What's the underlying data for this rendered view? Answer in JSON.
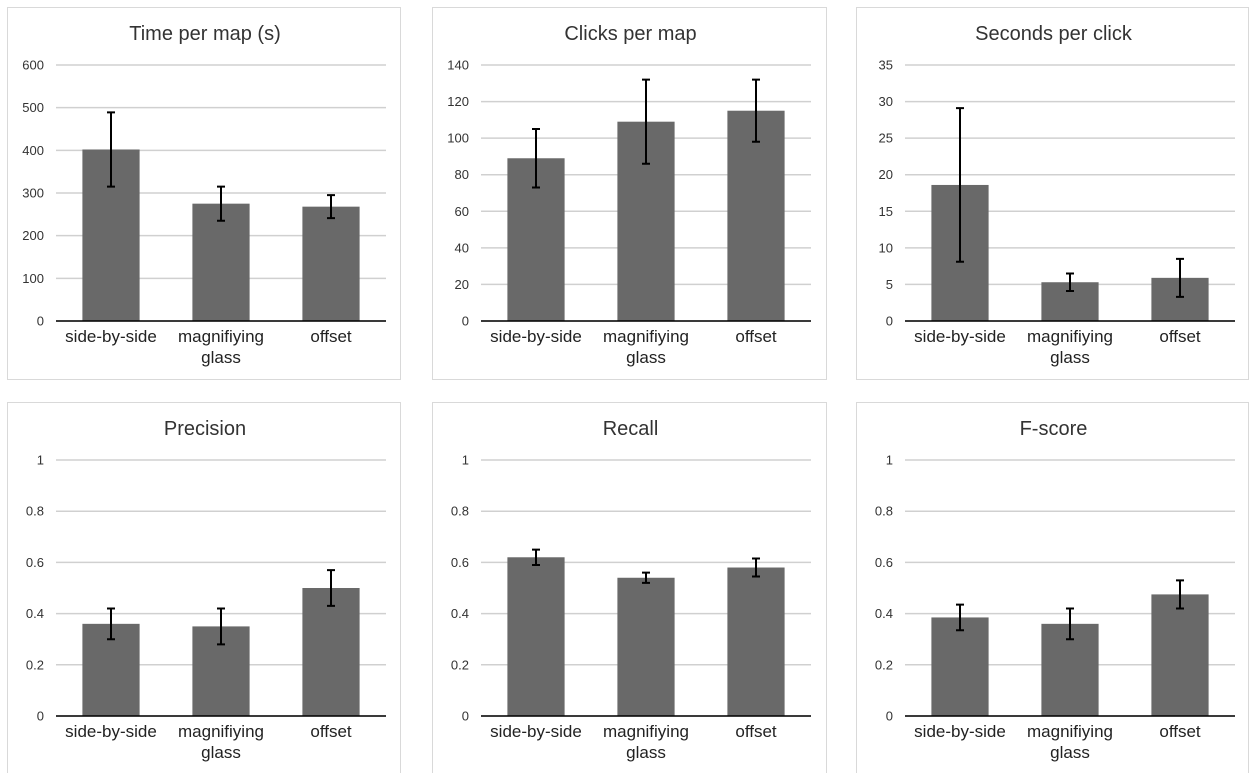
{
  "chart_data": [
    {
      "type": "bar",
      "title": "Time per map (s)",
      "categories": [
        "side-by-side",
        "magnifiying glass",
        "offset"
      ],
      "values": [
        402,
        275,
        268
      ],
      "errors": [
        87,
        40,
        27
      ],
      "color": "#696969",
      "ylim": [
        0,
        600
      ],
      "yticks": [
        0,
        100,
        200,
        300,
        400,
        500,
        600
      ],
      "grid": true
    },
    {
      "type": "bar",
      "title": "Clicks per map",
      "categories": [
        "side-by-side",
        "magnifiying glass",
        "offset"
      ],
      "values": [
        89,
        109,
        115
      ],
      "errors": [
        16,
        23,
        17
      ],
      "color": "#696969",
      "ylim": [
        0,
        140
      ],
      "yticks": [
        0,
        20,
        40,
        60,
        80,
        100,
        120,
        140
      ],
      "grid": true
    },
    {
      "type": "bar",
      "title": "Seconds per click",
      "categories": [
        "side-by-side",
        "magnifiying glass",
        "offset"
      ],
      "values": [
        18.6,
        5.3,
        5.9
      ],
      "errors": [
        10.5,
        1.2,
        2.6
      ],
      "color": "#696969",
      "ylim": [
        0,
        35
      ],
      "yticks": [
        0,
        5,
        10,
        15,
        20,
        25,
        30,
        35
      ],
      "grid": true
    },
    {
      "type": "bar",
      "title": "Precision",
      "categories": [
        "side-by-side",
        "magnifiying glass",
        "offset"
      ],
      "values": [
        0.36,
        0.35,
        0.5
      ],
      "errors": [
        0.06,
        0.07,
        0.07
      ],
      "color": "#696969",
      "ylim": [
        0,
        1
      ],
      "yticks": [
        0,
        0.2,
        0.4,
        0.6,
        0.8,
        1
      ],
      "grid": true
    },
    {
      "type": "bar",
      "title": "Recall",
      "categories": [
        "side-by-side",
        "magnifiying glass",
        "offset"
      ],
      "values": [
        0.62,
        0.54,
        0.58
      ],
      "errors": [
        0.03,
        0.02,
        0.035
      ],
      "color": "#696969",
      "ylim": [
        0,
        1
      ],
      "yticks": [
        0,
        0.2,
        0.4,
        0.6,
        0.8,
        1
      ],
      "grid": true
    },
    {
      "type": "bar",
      "title": "F-score",
      "categories": [
        "side-by-side",
        "magnifiying glass",
        "offset"
      ],
      "values": [
        0.385,
        0.36,
        0.475
      ],
      "errors": [
        0.05,
        0.06,
        0.055
      ],
      "color": "#696969",
      "ylim": [
        0,
        1
      ],
      "yticks": [
        0,
        0.2,
        0.4,
        0.6,
        0.8,
        1
      ],
      "grid": true
    }
  ]
}
